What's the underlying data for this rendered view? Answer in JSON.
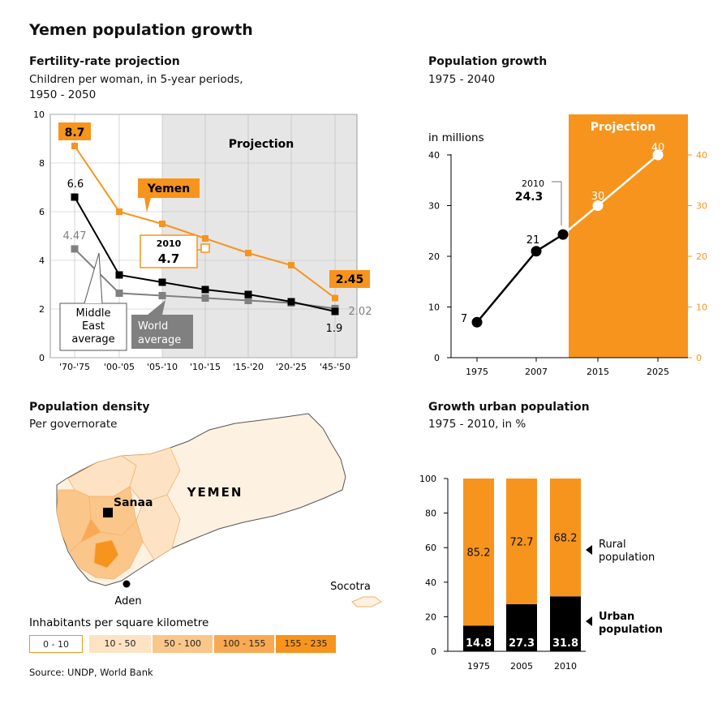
{
  "title": "Yemen population growth",
  "source": "Source: UNDP, World Bank",
  "colors": {
    "orange": "#f7941d",
    "orange_light": "#fbd7a8",
    "black": "#000000",
    "gray": "#808080",
    "panel_gray": "#e6e6e6"
  },
  "fertility": {
    "heading": "Fertility-rate projection",
    "subtitle_line1": "Children per woman, in 5-year periods,",
    "subtitle_line2": "1950 - 2050",
    "projection_label": "Projection",
    "yemen_label": "Yemen",
    "middle_east_line1": "Middle",
    "middle_east_line2": "East",
    "middle_east_line3": "average",
    "world_line1": "World",
    "world_line2": "average",
    "callout_year": "2010",
    "callout_value": "4.7",
    "label_start_yemen": "8.7",
    "label_end_yemen": "2.45",
    "label_start_me": "6.6",
    "label_end_me": "1.9",
    "label_start_world": "4.47",
    "label_end_world": "2.02"
  },
  "population_growth": {
    "heading": "Population growth",
    "subtitle": "1975 - 2040",
    "unit": "in millions",
    "projection_label": "Projection",
    "callout_year": "2010",
    "callout_value": "24.3",
    "label_7": "7",
    "label_21": "21",
    "label_30": "30",
    "label_40": "40"
  },
  "density": {
    "heading": "Population density",
    "subtitle": "Per governorate",
    "country_label": "YEMEN",
    "city_sanaa": "Sanaa",
    "city_aden": "Aden",
    "island": "Socotra",
    "legend_title": "Inhabitants per square kilometre",
    "legend": [
      "0 - 10",
      "10 - 50",
      "50 - 100",
      "100 - 155",
      "155 - 235"
    ],
    "legend_colors": [
      "#ffffff",
      "#fde3c4",
      "#fbc68a",
      "#f9a954",
      "#f7941d"
    ]
  },
  "urban": {
    "heading": "Growth urban population",
    "subtitle": "1975 - 2010, in %",
    "rural_line1": "Rural",
    "rural_line2": "population",
    "urban_line1": "Urban",
    "urban_line2": "population"
  },
  "chart_data": [
    {
      "type": "line",
      "title": "Fertility-rate projection",
      "subtitle": "Children per woman, in 5-year periods, 1950 - 2050",
      "categories": [
        "'70-'75",
        "'00-'05",
        "'05-'10",
        "'10-'15",
        "'15-'20",
        "'20-'25",
        "'45-'50"
      ],
      "yticks": [
        "0",
        "2",
        "4",
        "6",
        "8",
        "10"
      ],
      "ylim": [
        0,
        10
      ],
      "series": [
        {
          "name": "Yemen",
          "values": [
            8.7,
            6.0,
            5.5,
            4.9,
            4.3,
            3.8,
            2.45
          ]
        },
        {
          "name": "Middle East average",
          "values": [
            6.6,
            3.4,
            3.1,
            2.8,
            2.6,
            2.3,
            1.9
          ]
        },
        {
          "name": "World average",
          "values": [
            4.47,
            2.65,
            2.55,
            2.45,
            2.35,
            2.25,
            2.02
          ]
        }
      ],
      "annotations": [
        "Projection",
        "2010 4.7"
      ]
    },
    {
      "type": "line",
      "title": "Population growth",
      "subtitle": "1975 - 2040",
      "ylabel": "in millions",
      "xticks": [
        "1975",
        "2007",
        "2015",
        "2025"
      ],
      "yticks": [
        "0",
        "10",
        "20",
        "30",
        "40"
      ],
      "ylim": [
        0,
        48
      ],
      "points": [
        {
          "x": 1975,
          "y": 7
        },
        {
          "x": 2007,
          "y": 21
        },
        {
          "x": 2010,
          "y": 24.3
        },
        {
          "x": 2015,
          "y": 30
        },
        {
          "x": 2025,
          "y": 40
        }
      ],
      "projection_from": 2010
    },
    {
      "type": "bar",
      "stacked": true,
      "title": "Growth urban population",
      "subtitle": "1975 - 2010, in %",
      "categories": [
        "1975",
        "2005",
        "2010"
      ],
      "yticks": [
        "0",
        "20",
        "40",
        "60",
        "80",
        "100"
      ],
      "ylim": [
        0,
        100
      ],
      "series": [
        {
          "name": "Urban population",
          "values": [
            14.8,
            27.3,
            31.8
          ]
        },
        {
          "name": "Rural population",
          "values": [
            85.2,
            72.7,
            68.2
          ]
        }
      ]
    }
  ]
}
